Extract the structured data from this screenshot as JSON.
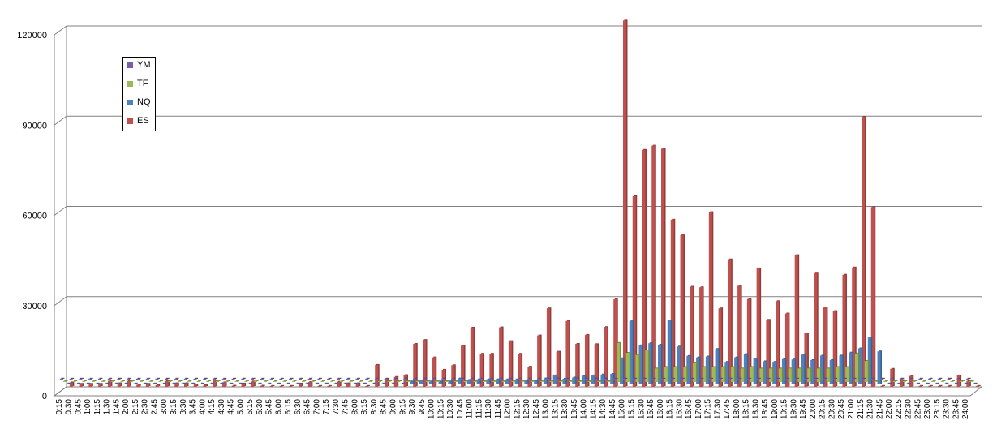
{
  "chart_data": {
    "type": "bar",
    "title": "",
    "xlabel": "",
    "ylabel": "",
    "ylim": [
      0,
      120000
    ],
    "yticks": [
      "0",
      "30000",
      "60000",
      "90000",
      "120000"
    ],
    "grid": true,
    "legend_position": "top-left",
    "legend": [
      {
        "name": "YM",
        "color": "#7b5ea7"
      },
      {
        "name": "TF",
        "color": "#9bbb59"
      },
      {
        "name": "NQ",
        "color": "#4f81bd"
      },
      {
        "name": "ES",
        "color": "#c0504d"
      }
    ],
    "categories": [
      "0:15",
      "0:30",
      "0:45",
      "1:00",
      "1:15",
      "1:30",
      "1:45",
      "2:00",
      "2:15",
      "2:30",
      "2:45",
      "3:00",
      "3:15",
      "3:30",
      "3:45",
      "4:00",
      "4:15",
      "4:30",
      "4:45",
      "5:00",
      "5:15",
      "5:30",
      "5:45",
      "6:00",
      "6:15",
      "6:30",
      "6:45",
      "7:00",
      "7:15",
      "7:30",
      "7:45",
      "8:00",
      "8:15",
      "8:30",
      "8:45",
      "9:00",
      "9:15",
      "9:30",
      "9:45",
      "10:00",
      "10:15",
      "10:30",
      "10:45",
      "11:00",
      "11:15",
      "11:30",
      "11:45",
      "12:00",
      "12:15",
      "12:30",
      "12:45",
      "13:00",
      "13:15",
      "13:30",
      "13:45",
      "14:00",
      "14:15",
      "14:30",
      "14:45",
      "15:00",
      "15:15",
      "15:30",
      "15:45",
      "16:00",
      "16:15",
      "16:30",
      "16:45",
      "17:00",
      "17:15",
      "17:30",
      "17:45",
      "18:00",
      "18:15",
      "18:30",
      "18:45",
      "19:00",
      "19:15",
      "19:30",
      "19:45",
      "20:00",
      "20:15",
      "20:30",
      "20:45",
      "21:00",
      "21:15",
      "21:30",
      "21:45",
      "22:00",
      "22:15",
      "22:30",
      "22:45",
      "23:00",
      "23:15",
      "23:30",
      "23:45",
      "24:00"
    ],
    "series": [
      {
        "name": "ES",
        "color": "#c0504d",
        "values": [
          1500,
          1000,
          1000,
          1000,
          2000,
          1200,
          2000,
          700,
          1000,
          600,
          2000,
          1200,
          1200,
          800,
          600,
          2200,
          1500,
          400,
          1100,
          1800,
          400,
          300,
          300,
          300,
          1100,
          1600,
          300,
          100,
          1700,
          1200,
          1200,
          200,
          7300,
          2500,
          3300,
          3900,
          14300,
          15600,
          9800,
          5700,
          7200,
          13700,
          19700,
          11000,
          11000,
          19800,
          15200,
          11000,
          6700,
          17100,
          26100,
          11700,
          21900,
          14300,
          17300,
          14200,
          19900,
          29100,
          121800,
          63400,
          78800,
          80200,
          79200,
          55600,
          50400,
          33300,
          33100,
          58100,
          26100,
          42400,
          33600,
          29200,
          39400,
          22300,
          28500,
          24400,
          43800,
          17800,
          37700,
          26400,
          25200,
          37300,
          39700,
          89800,
          59800,
          0,
          6000,
          2300,
          3600,
          0,
          200,
          0,
          0,
          3800,
          2000,
          300
        ]
      },
      {
        "name": "NQ",
        "color": "#4f81bd",
        "values": [
          0,
          0,
          0,
          0,
          0,
          0,
          0,
          0,
          0,
          0,
          0,
          0,
          0,
          0,
          0,
          0,
          0,
          0,
          0,
          0,
          0,
          0,
          0,
          0,
          0,
          0,
          0,
          0,
          0,
          0,
          0,
          0,
          0,
          0,
          0,
          0,
          1000,
          1300,
          1000,
          1000,
          1000,
          2000,
          1500,
          1700,
          1700,
          1700,
          1700,
          1700,
          1200,
          1200,
          2000,
          3000,
          1900,
          2300,
          2800,
          3000,
          3300,
          3500,
          8700,
          21000,
          13000,
          13700,
          13200,
          21300,
          12600,
          9500,
          9000,
          9300,
          11800,
          7500,
          9000,
          10100,
          8600,
          7700,
          7500,
          8400,
          8300,
          9900,
          8100,
          9600,
          8100,
          9600,
          10600,
          12000,
          15600,
          11000,
          0,
          0,
          0,
          0,
          0,
          0,
          0,
          0,
          0,
          0
        ]
      },
      {
        "name": "TF",
        "color": "#9bbb59",
        "values": [
          0,
          0,
          0,
          0,
          0,
          0,
          0,
          0,
          0,
          0,
          0,
          0,
          0,
          0,
          0,
          0,
          0,
          0,
          0,
          0,
          0,
          0,
          0,
          0,
          0,
          0,
          0,
          0,
          0,
          0,
          0,
          0,
          0,
          0,
          0,
          0,
          0,
          0,
          0,
          0,
          0,
          0,
          0,
          0,
          0,
          0,
          0,
          0,
          0,
          0,
          0,
          0,
          0,
          0,
          0,
          0,
          0,
          0,
          13000,
          9700,
          9000,
          10500,
          4500,
          5000,
          5000,
          5000,
          6500,
          5000,
          5000,
          5000,
          5000,
          4500,
          5000,
          4500,
          4500,
          4500,
          4500,
          4500,
          4500,
          4500,
          4500,
          5000,
          5000,
          9500,
          7000,
          0,
          0,
          0,
          0,
          0,
          0,
          0,
          0,
          0,
          0,
          0
        ]
      },
      {
        "name": "YM",
        "color": "#7b5ea7",
        "values": [
          0,
          0,
          0,
          0,
          0,
          0,
          0,
          0,
          0,
          0,
          0,
          0,
          0,
          0,
          0,
          0,
          0,
          0,
          0,
          0,
          0,
          0,
          0,
          0,
          0,
          0,
          0,
          0,
          0,
          0,
          0,
          0,
          0,
          0,
          0,
          0,
          0,
          0,
          0,
          0,
          0,
          0,
          0,
          0,
          0,
          0,
          0,
          0,
          0,
          0,
          0,
          0,
          0,
          0,
          0,
          0,
          0,
          0,
          0,
          0,
          0,
          0,
          0,
          0,
          0,
          0,
          0,
          0,
          0,
          0,
          0,
          0,
          0,
          0,
          0,
          0,
          0,
          0,
          0,
          0,
          0,
          0,
          0,
          0,
          0,
          0,
          0,
          0,
          0,
          0,
          0,
          0,
          0,
          0,
          0,
          0
        ]
      }
    ]
  }
}
